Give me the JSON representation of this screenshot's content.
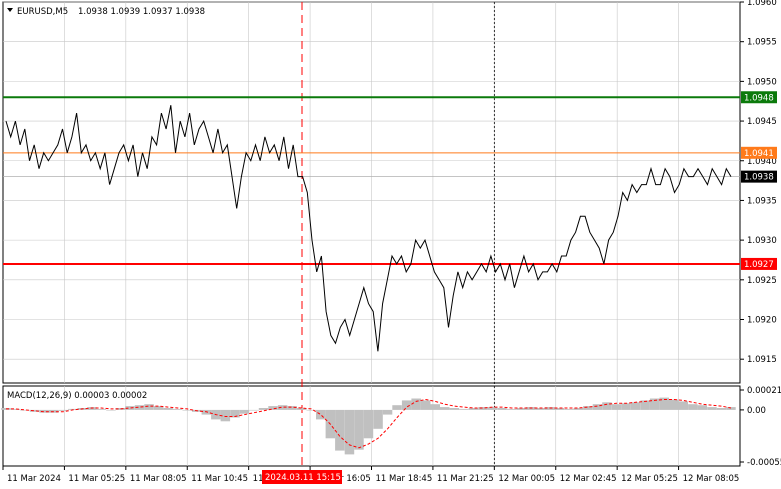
{
  "header": {
    "symbol": "EURUSD,M5",
    "ohlc": "1.0938 1.0939 1.0937 1.0938",
    "menu_icon": "triangle-down-icon"
  },
  "colors": {
    "background": "#ffffff",
    "grid": "#c8c8c8",
    "price_line": "#000000",
    "green_level": "#0b7a0b",
    "orange_level": "#ff7a1a",
    "red_level": "#ff0000",
    "current_price": "#b0b0b0",
    "vline_red": "#ff0000",
    "macd_hist": "#c0c0c0",
    "macd_signal": "#ff0000"
  },
  "price_axis": {
    "min": 1.0912,
    "max": 1.096,
    "ticks": [
      "1.0960",
      "1.0955",
      "1.0950",
      "1.0945",
      "1.0940",
      "1.0935",
      "1.0930",
      "1.0925",
      "1.0920",
      "1.0915"
    ]
  },
  "levels": [
    {
      "id": "green",
      "value": 1.0948,
      "label": "1.0948",
      "color": "#0b7a0b"
    },
    {
      "id": "orange",
      "value": 1.0941,
      "label": "1.0941",
      "color": "#ff7a1a"
    },
    {
      "id": "current",
      "value": 1.0938,
      "label": "1.0938",
      "color": "#000000"
    },
    {
      "id": "red",
      "value": 1.0927,
      "label": "1.0927",
      "color": "#ff0000"
    }
  ],
  "time_axis": {
    "labels": [
      "11 Mar 2024",
      "11 Mar 05:25",
      "11 Mar 08:05",
      "11 Mar 10:45",
      "11 Mar 13:25",
      "11 Mar 16:05",
      "11 Mar 18:45",
      "11 Mar 21:25",
      "12 Mar 00:05",
      "12 Mar 02:45",
      "12 Mar 05:25",
      "12 Mar 08:05"
    ],
    "highlight_label": "2024.03.11 15:15",
    "highlight_index": 4,
    "day_separator_index": 8
  },
  "macd": {
    "label": "MACD(12,26,9) 0.00003 0.00002",
    "ticks": [
      "0.00021",
      "0.00",
      "-0.00055"
    ],
    "min": -0.00055,
    "max": 0.00021
  },
  "chart_data": {
    "type": "line",
    "series": [
      {
        "values": [
          1.0945,
          1.0943,
          1.0945,
          1.0942,
          1.0944,
          1.094,
          1.0942,
          1.0939,
          1.0941,
          1.094,
          1.0941,
          1.0942,
          1.0944,
          1.0941,
          1.0943,
          1.0946,
          1.0941,
          1.0942,
          1.094,
          1.0941,
          1.0939,
          1.0941,
          1.0937,
          1.0939,
          1.0941,
          1.0942,
          1.094,
          1.0942,
          1.0938,
          1.0941,
          1.0939,
          1.0943,
          1.0942,
          1.0946,
          1.0944,
          1.0947,
          1.0941,
          1.0945,
          1.0943,
          1.0946,
          1.0942,
          1.0944,
          1.0945,
          1.0943,
          1.0941,
          1.0944,
          1.0941,
          1.0942,
          1.0938,
          1.0934,
          1.0938,
          1.0941,
          1.094,
          1.0942,
          1.094,
          1.0943,
          1.0941,
          1.0942,
          1.094,
          1.0943,
          1.0939,
          1.0942,
          1.0938,
          1.0938,
          1.0936,
          1.093,
          1.0926,
          1.0928,
          1.0921,
          1.0918,
          1.0917,
          1.0919,
          1.092,
          1.0918,
          1.092,
          1.0922,
          1.0924,
          1.0922,
          1.0921,
          1.0916,
          1.0922,
          1.0925,
          1.0928,
          1.0927,
          1.0928,
          1.0926,
          1.0927,
          1.093,
          1.0929,
          1.093,
          1.0928,
          1.0926,
          1.0925,
          1.0924,
          1.0919,
          1.0923,
          1.0926,
          1.0924,
          1.0926,
          1.0925,
          1.0926,
          1.0927,
          1.0926,
          1.0928,
          1.0926,
          1.0927,
          1.0925,
          1.0927,
          1.0924,
          1.0926,
          1.0928,
          1.0926,
          1.0927,
          1.0925,
          1.0926,
          1.0926,
          1.0927,
          1.0926,
          1.0928,
          1.0928,
          1.093,
          1.0931,
          1.0933,
          1.0933,
          1.0931,
          1.093,
          1.0929,
          1.0927,
          1.093,
          1.0931,
          1.0933,
          1.0936,
          1.0935,
          1.0937,
          1.0936,
          1.0937,
          1.0937,
          1.0939,
          1.0937,
          1.0937,
          1.0939,
          1.0938,
          1.0936,
          1.0937,
          1.0939,
          1.0938,
          1.0938,
          1.0939,
          1.0938,
          1.0937,
          1.0939,
          1.0938,
          1.0937,
          1.0939,
          1.0938
        ]
      },
      {
        "name": "MACD",
        "values": [
          2e-05,
          1e-05,
          0.0,
          -2e-05,
          -3e-05,
          -3e-05,
          -1e-05,
          1e-05,
          2e-05,
          3e-05,
          1e-05,
          0.0,
          2e-05,
          4e-05,
          5e-05,
          6e-05,
          4e-05,
          2e-05,
          1e-05,
          0.0,
          -2e-05,
          -5e-05,
          -0.0001,
          -0.00012,
          -8e-05,
          -4e-05,
          0.0,
          2e-05,
          4e-05,
          5e-05,
          4e-05,
          2e-05,
          0.0,
          -0.0001,
          -0.0003,
          -0.00043,
          -0.00047,
          -0.00042,
          -0.0003,
          -0.0002,
          -5e-05,
          5e-05,
          0.0001,
          0.00012,
          0.0001,
          6e-05,
          3e-05,
          2e-05,
          1e-05,
          2e-05,
          3e-05,
          3e-05,
          2e-05,
          1e-05,
          2e-05,
          3e-05,
          2e-05,
          3e-05,
          2e-05,
          1e-05,
          2e-05,
          4e-05,
          6e-05,
          8e-05,
          6e-05,
          7e-05,
          8e-05,
          0.0001,
          0.00012,
          0.00013,
          0.00011,
          9e-05,
          6e-05,
          5e-05,
          3e-05,
          2e-05,
          3e-05
        ]
      },
      {
        "name": "Signal",
        "values": [
          1e-05,
          1e-05,
          0.0,
          -1e-05,
          -2e-05,
          -2e-05,
          -2e-05,
          0.0,
          1e-05,
          2e-05,
          2e-05,
          1e-05,
          1e-05,
          2e-05,
          3e-05,
          4e-05,
          4e-05,
          3e-05,
          2e-05,
          1e-05,
          -1e-05,
          -2e-05,
          -5e-05,
          -7e-05,
          -7e-05,
          -5e-05,
          -3e-05,
          -1e-05,
          1e-05,
          3e-05,
          3e-05,
          2e-05,
          1e-05,
          -5e-05,
          -0.00015,
          -0.00028,
          -0.00037,
          -0.0004,
          -0.00036,
          -0.0003,
          -0.0002,
          -8e-05,
          3e-05,
          9e-05,
          0.00011,
          9e-05,
          6e-05,
          4e-05,
          3e-05,
          2e-05,
          2e-05,
          3e-05,
          3e-05,
          2e-05,
          2e-05,
          2e-05,
          2e-05,
          2e-05,
          2e-05,
          2e-05,
          2e-05,
          3e-05,
          4e-05,
          6e-05,
          7e-05,
          7e-05,
          8e-05,
          9e-05,
          0.0001,
          0.00011,
          0.00011,
          0.0001,
          8e-05,
          6e-05,
          5e-05,
          4e-05,
          2e-05
        ]
      }
    ]
  }
}
